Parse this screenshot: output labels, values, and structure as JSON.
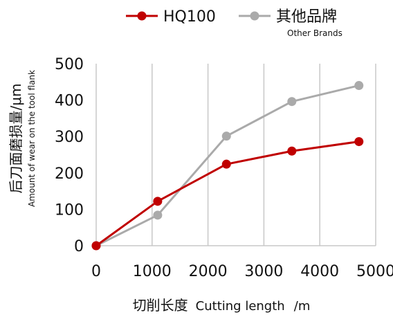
{
  "chart_data": {
    "type": "line",
    "title": "",
    "xlabel_cn": "切削长度",
    "xlabel_en": "Cutting length",
    "xlabel_unit": "/m",
    "ylabel_cn": "后刀面磨损量/μm",
    "ylabel_en": "Amount of wear on the tool flank",
    "xlim": [
      0,
      5000
    ],
    "ylim": [
      0,
      500
    ],
    "xticks": [
      0,
      1000,
      2000,
      3000,
      4000,
      5000
    ],
    "yticks": [
      0,
      100,
      200,
      300,
      400,
      500
    ],
    "grid": "vertical",
    "legend_position": "top",
    "series": [
      {
        "name": "HQ100",
        "name_sub": "",
        "color": "#c00000",
        "x": [
          0,
          1100,
          2330,
          3500,
          4700
        ],
        "y": [
          0,
          122,
          224,
          260,
          286
        ]
      },
      {
        "name": "其他品牌",
        "name_sub": "Other Brands",
        "color": "#aaaaaa",
        "x": [
          0,
          1100,
          2330,
          3500,
          4700
        ],
        "y": [
          0,
          84,
          301,
          396,
          440
        ]
      }
    ]
  }
}
